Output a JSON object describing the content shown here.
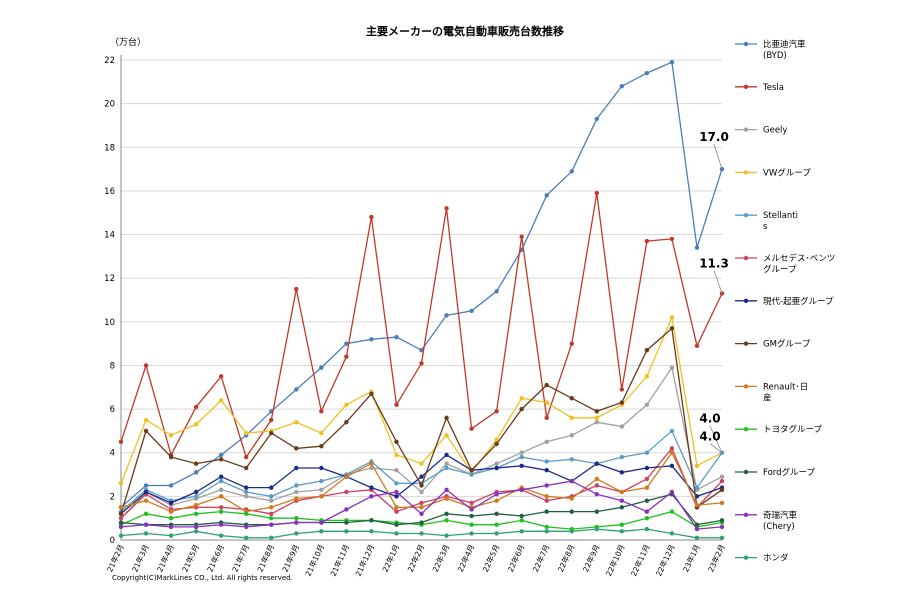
{
  "chart_data": {
    "type": "line",
    "title": "主要メーカーの電気自動車販売台数推移",
    "ylabel": "（万台）",
    "xlabel": "",
    "ylim": [
      0,
      22
    ],
    "yticks": [
      0,
      2,
      4,
      6,
      8,
      10,
      12,
      14,
      16,
      18,
      20,
      22
    ],
    "grid": true,
    "legend_position": "right",
    "copyright": "Copyright(C)MarkLines CO., Ltd. All rights reserved.",
    "categories": [
      "21年2月",
      "21年3月",
      "21年4月",
      "21年5月",
      "21年6月",
      "21年7月",
      "21年8月",
      "21年9月",
      "21年10月",
      "21年11月",
      "21年12月",
      "22年1月",
      "22年2月",
      "22年3月",
      "22年4月",
      "22年5月",
      "22年6月",
      "22年7月",
      "22年8月",
      "22年9月",
      "22年10月",
      "22年11月",
      "22年12月",
      "23年1月",
      "23年2月"
    ],
    "series": [
      {
        "name": "比亜迪汽車 (BYD)",
        "color": "#4a7ebb",
        "values": [
          1.5,
          2.5,
          2.5,
          3.1,
          3.9,
          4.8,
          5.9,
          6.9,
          7.9,
          9.0,
          9.2,
          9.3,
          8.7,
          10.3,
          10.5,
          11.4,
          13.3,
          15.8,
          16.9,
          19.3,
          20.8,
          21.4,
          21.9,
          13.4,
          17.0
        ]
      },
      {
        "name": "Tesla",
        "color": "#c0392b",
        "values": [
          4.5,
          8.0,
          3.9,
          6.1,
          7.5,
          3.8,
          5.5,
          11.5,
          5.9,
          8.4,
          14.8,
          6.2,
          8.1,
          15.2,
          5.1,
          5.9,
          13.9,
          5.6,
          9.0,
          15.9,
          6.9,
          13.7,
          13.8,
          8.9,
          11.3
        ]
      },
      {
        "name": "Geely",
        "color": "#a0a0a0",
        "values": [
          1.0,
          2.2,
          1.6,
          1.9,
          2.3,
          2.0,
          1.8,
          2.2,
          2.3,
          3.0,
          3.3,
          3.2,
          2.2,
          3.5,
          3.0,
          3.5,
          4.0,
          4.5,
          4.8,
          5.4,
          5.2,
          6.2,
          7.9,
          2.3,
          2.9
        ]
      },
      {
        "name": "VWグループ",
        "color": "#f0c020",
        "values": [
          2.6,
          5.5,
          4.8,
          5.3,
          6.4,
          4.9,
          5.0,
          5.4,
          4.9,
          6.2,
          6.8,
          3.9,
          3.5,
          4.8,
          3.1,
          4.6,
          6.5,
          6.3,
          5.6,
          5.6,
          6.2,
          7.5,
          10.2,
          3.4,
          4.0
        ]
      },
      {
        "name": "Stellantis",
        "color": "#5a9cc8",
        "values": [
          1.3,
          2.3,
          1.8,
          2.0,
          2.7,
          2.2,
          2.0,
          2.5,
          2.7,
          3.0,
          3.6,
          2.6,
          2.6,
          3.3,
          3.0,
          3.3,
          3.8,
          3.6,
          3.7,
          3.5,
          3.8,
          4.0,
          5.0,
          2.4,
          4.0
        ]
      },
      {
        "name": "メルセデス･ベンツグループ",
        "color": "#d04060",
        "values": [
          1.0,
          2.1,
          1.4,
          1.5,
          1.5,
          1.4,
          1.2,
          1.8,
          2.0,
          2.2,
          2.3,
          1.3,
          1.7,
          2.0,
          1.7,
          2.2,
          2.3,
          1.8,
          2.0,
          2.5,
          2.2,
          2.8,
          4.2,
          1.5,
          2.7
        ]
      },
      {
        "name": "現代-起亜グループ",
        "color": "#1a2a8a",
        "values": [
          1.2,
          2.2,
          1.7,
          2.2,
          2.9,
          2.4,
          2.4,
          3.3,
          3.3,
          2.9,
          2.4,
          2.0,
          2.9,
          3.9,
          3.2,
          3.3,
          3.4,
          3.2,
          2.7,
          3.5,
          3.1,
          3.3,
          3.4,
          2.0,
          2.4
        ]
      },
      {
        "name": "GMグループ",
        "color": "#6b3a1a",
        "values": [
          1.2,
          5.0,
          3.8,
          3.5,
          3.7,
          3.3,
          4.9,
          4.2,
          4.3,
          5.4,
          6.7,
          4.5,
          2.5,
          5.6,
          3.2,
          4.4,
          6.0,
          7.1,
          6.5,
          5.9,
          6.3,
          8.7,
          9.7,
          1.5,
          2.3
        ]
      },
      {
        "name": "Renault･日産",
        "color": "#d07a20",
        "values": [
          1.5,
          1.8,
          1.3,
          1.6,
          2.0,
          1.3,
          1.5,
          1.9,
          2.0,
          2.9,
          3.5,
          1.5,
          1.5,
          1.9,
          1.5,
          1.8,
          2.4,
          2.0,
          1.9,
          2.8,
          2.2,
          2.4,
          4.0,
          1.6,
          1.7
        ]
      },
      {
        "name": "トヨタグループ",
        "color": "#20c020",
        "values": [
          0.7,
          1.2,
          1.0,
          1.2,
          1.3,
          1.2,
          1.0,
          1.0,
          0.9,
          0.9,
          0.9,
          0.8,
          0.7,
          0.9,
          0.7,
          0.7,
          0.9,
          0.6,
          0.5,
          0.6,
          0.7,
          1.0,
          1.3,
          0.6,
          0.8
        ]
      },
      {
        "name": "Fordグループ",
        "color": "#206040",
        "values": [
          0.8,
          0.7,
          0.7,
          0.7,
          0.8,
          0.7,
          0.7,
          0.8,
          0.8,
          0.8,
          0.9,
          0.7,
          0.8,
          1.2,
          1.1,
          1.2,
          1.1,
          1.3,
          1.3,
          1.3,
          1.5,
          1.8,
          2.1,
          0.7,
          0.9
        ]
      },
      {
        "name": "奇瑞汽車 (Chery)",
        "color": "#8a30c0",
        "values": [
          0.6,
          0.7,
          0.6,
          0.6,
          0.7,
          0.6,
          0.7,
          0.8,
          0.8,
          1.4,
          2.0,
          2.2,
          1.2,
          2.3,
          1.4,
          2.1,
          2.3,
          2.5,
          2.7,
          2.1,
          1.8,
          1.3,
          2.2,
          0.5,
          0.6
        ]
      },
      {
        "name": "ホンダ",
        "color": "#30a070",
        "values": [
          0.2,
          0.3,
          0.2,
          0.4,
          0.2,
          0.1,
          0.1,
          0.3,
          0.4,
          0.4,
          0.4,
          0.3,
          0.3,
          0.2,
          0.3,
          0.3,
          0.4,
          0.4,
          0.4,
          0.5,
          0.4,
          0.5,
          0.3,
          0.1,
          0.1
        ]
      }
    ],
    "annotations": [
      {
        "series_index": 0,
        "point_index": 24,
        "text": "17.0"
      },
      {
        "series_index": 1,
        "point_index": 24,
        "text": "11.3"
      },
      {
        "series_index": 3,
        "point_index": 24,
        "text": "4.0"
      },
      {
        "series_index": 4,
        "point_index": 24,
        "text": "4.0"
      }
    ]
  }
}
